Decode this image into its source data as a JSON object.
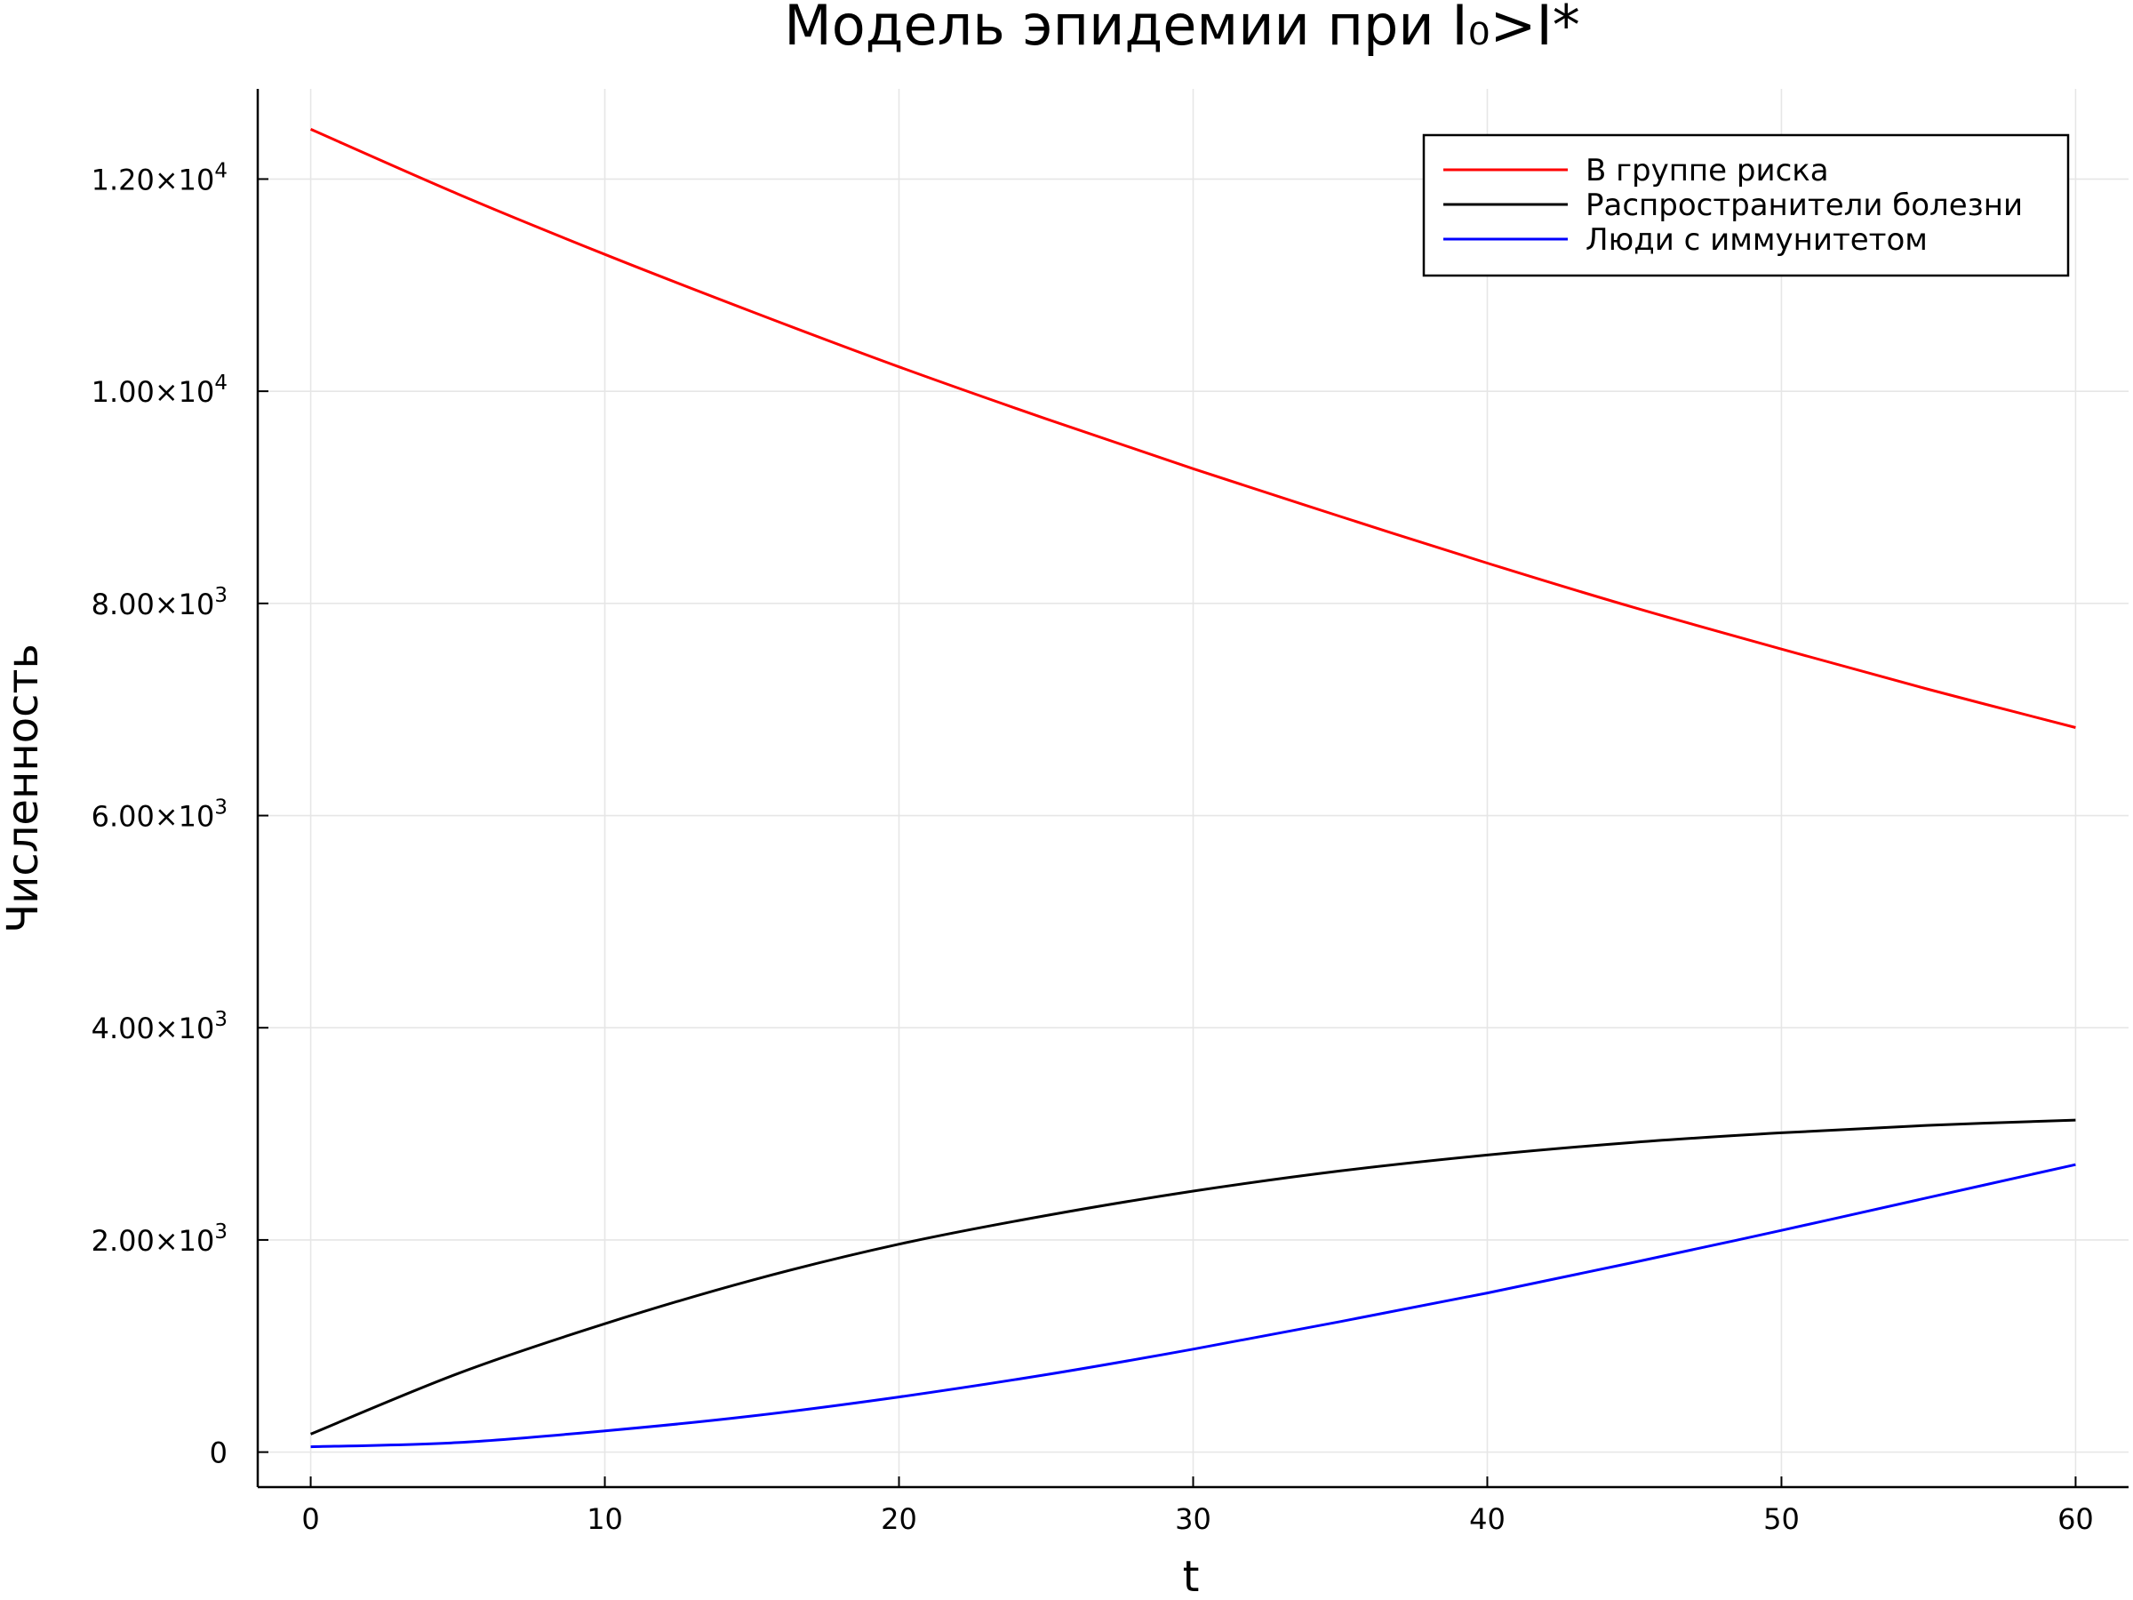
{
  "chart_data": {
    "type": "line",
    "title": "Модель эпидемии при I₀>I*",
    "xlabel": "t",
    "ylabel": "Численность",
    "xlim": [
      -1.8,
      61.8
    ],
    "ylim": [
      -330,
      12850
    ],
    "x_ticks": [
      {
        "value": 0,
        "label": "0"
      },
      {
        "value": 10,
        "label": "10"
      },
      {
        "value": 20,
        "label": "20"
      },
      {
        "value": 30,
        "label": "30"
      },
      {
        "value": 40,
        "label": "40"
      },
      {
        "value": 50,
        "label": "50"
      },
      {
        "value": 60,
        "label": "60"
      }
    ],
    "y_ticks": [
      {
        "value": 0,
        "mantissa": "0",
        "exponent": ""
      },
      {
        "value": 2000,
        "mantissa": "2.00×10",
        "exponent": "3"
      },
      {
        "value": 4000,
        "mantissa": "4.00×10",
        "exponent": "3"
      },
      {
        "value": 6000,
        "mantissa": "6.00×10",
        "exponent": "3"
      },
      {
        "value": 8000,
        "mantissa": "8.00×10",
        "exponent": "3"
      },
      {
        "value": 10000,
        "mantissa": "1.00×10",
        "exponent": "4"
      },
      {
        "value": 12000,
        "mantissa": "1.20×10",
        "exponent": "4"
      }
    ],
    "grid": true,
    "legend_position": "top-right",
    "x": [
      0,
      5,
      10,
      15,
      20,
      25,
      30,
      35,
      40,
      45,
      50,
      55,
      60
    ],
    "series": [
      {
        "name": "В группе риска",
        "color": "#ff0000",
        "values": [
          12470,
          11860,
          11290,
          10750,
          10230,
          9740,
          9270,
          8820,
          8380,
          7960,
          7570,
          7190,
          6830
        ]
      },
      {
        "name": "Распространители болезни",
        "color": "#000000",
        "values": [
          170,
          740,
          1210,
          1620,
          1960,
          2230,
          2460,
          2650,
          2800,
          2920,
          3010,
          3080,
          3130
        ]
      },
      {
        "name": "Люди с иммунитетом",
        "color": "#0000ff",
        "values": [
          50,
          90,
          200,
          340,
          520,
          730,
          970,
          1230,
          1500,
          1790,
          2090,
          2400,
          2710
        ]
      }
    ]
  }
}
